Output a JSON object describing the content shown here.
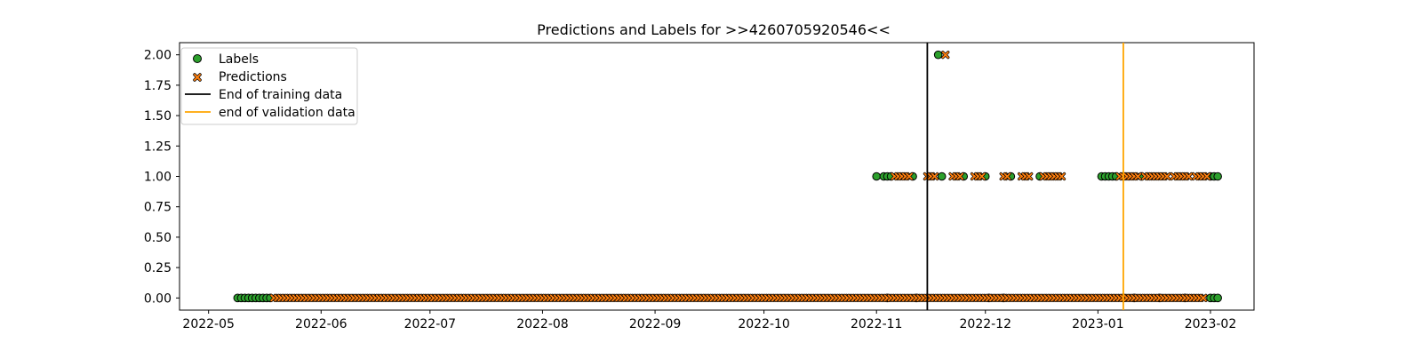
{
  "chart_data": {
    "type": "scatter",
    "title": "Predictions and Labels for >>4260705920546<<",
    "xlabel": "",
    "ylabel": "",
    "xlim": [
      "2022-04-23",
      "2023-02-13"
    ],
    "ylim": [
      -0.1,
      2.1
    ],
    "x_ticks": [
      "2022-05",
      "2022-06",
      "2022-07",
      "2022-08",
      "2022-09",
      "2022-10",
      "2022-11",
      "2022-12",
      "2023-01",
      "2023-02"
    ],
    "x_tick_dates": [
      "2022-05-01",
      "2022-06-01",
      "2022-07-01",
      "2022-08-01",
      "2022-09-01",
      "2022-10-01",
      "2022-11-01",
      "2022-12-01",
      "2023-01-01",
      "2023-02-01"
    ],
    "y_ticks": [
      "0.00",
      "0.25",
      "0.50",
      "0.75",
      "1.00",
      "1.25",
      "1.50",
      "1.75",
      "2.00"
    ],
    "y_tick_values": [
      0,
      0.25,
      0.5,
      0.75,
      1,
      1.25,
      1.5,
      1.75,
      2
    ],
    "grid": false,
    "legend_position": "top-left",
    "series": [
      {
        "name": "Labels",
        "marker": "circle",
        "color": "#2ca02c",
        "edge_color": "#000000",
        "date_ranges": [
          {
            "start": "2022-05-09",
            "end": "2022-05-18",
            "y": 0
          },
          {
            "start": "2022-11-01",
            "end": "2022-11-01",
            "y": 1
          },
          {
            "start": "2022-11-03",
            "end": "2022-11-05",
            "y": 1
          },
          {
            "start": "2022-11-11",
            "end": "2022-11-11",
            "y": 1
          },
          {
            "start": "2022-11-18",
            "end": "2022-11-18",
            "y": 2
          },
          {
            "start": "2022-11-19",
            "end": "2022-11-19",
            "y": 1
          },
          {
            "start": "2022-11-25",
            "end": "2022-11-25",
            "y": 1
          },
          {
            "start": "2022-12-01",
            "end": "2022-12-01",
            "y": 1
          },
          {
            "start": "2022-12-08",
            "end": "2022-12-08",
            "y": 1
          },
          {
            "start": "2022-12-16",
            "end": "2022-12-16",
            "y": 1
          },
          {
            "start": "2023-01-02",
            "end": "2023-01-06",
            "y": 1
          },
          {
            "start": "2023-01-13",
            "end": "2023-01-13",
            "y": 1
          },
          {
            "start": "2023-02-01",
            "end": "2023-02-03",
            "y": 1
          },
          {
            "start": "2022-11-04",
            "end": "2022-11-04",
            "y": 0
          },
          {
            "start": "2022-11-12",
            "end": "2022-11-12",
            "y": 0
          },
          {
            "start": "2022-12-02",
            "end": "2022-12-02",
            "y": 0
          },
          {
            "start": "2022-12-06",
            "end": "2022-12-06",
            "y": 0
          },
          {
            "start": "2023-01-08",
            "end": "2023-01-08",
            "y": 0
          },
          {
            "start": "2023-01-11",
            "end": "2023-01-11",
            "y": 0
          },
          {
            "start": "2023-01-18",
            "end": "2023-01-18",
            "y": 0
          },
          {
            "start": "2023-01-25",
            "end": "2023-01-25",
            "y": 0
          },
          {
            "start": "2023-02-01",
            "end": "2023-02-03",
            "y": 0
          }
        ]
      },
      {
        "name": "Predictions",
        "marker": "x",
        "color": "#ff7f0e",
        "edge_color": "#000000",
        "date_ranges": [
          {
            "start": "2022-05-19",
            "end": "2023-01-30",
            "y": 0
          },
          {
            "start": "2022-11-06",
            "end": "2022-11-10",
            "y": 1
          },
          {
            "start": "2022-11-15",
            "end": "2022-11-17",
            "y": 1
          },
          {
            "start": "2022-11-20",
            "end": "2022-11-20",
            "y": 2
          },
          {
            "start": "2022-11-22",
            "end": "2022-11-24",
            "y": 1
          },
          {
            "start": "2022-11-28",
            "end": "2022-11-30",
            "y": 1
          },
          {
            "start": "2022-12-06",
            "end": "2022-12-07",
            "y": 1
          },
          {
            "start": "2022-12-11",
            "end": "2022-12-13",
            "y": 1
          },
          {
            "start": "2022-12-17",
            "end": "2022-12-22",
            "y": 1
          },
          {
            "start": "2023-01-07",
            "end": "2023-01-12",
            "y": 1
          },
          {
            "start": "2023-01-14",
            "end": "2023-01-20",
            "y": 1
          },
          {
            "start": "2023-01-22",
            "end": "2023-01-26",
            "y": 1
          },
          {
            "start": "2023-01-28",
            "end": "2023-01-31",
            "y": 1
          }
        ]
      }
    ],
    "vertical_lines": [
      {
        "name": "End of training data",
        "date": "2022-11-15",
        "color": "#000000"
      },
      {
        "name": "end of validation data",
        "date": "2023-01-08",
        "color": "#ffa500"
      }
    ]
  }
}
